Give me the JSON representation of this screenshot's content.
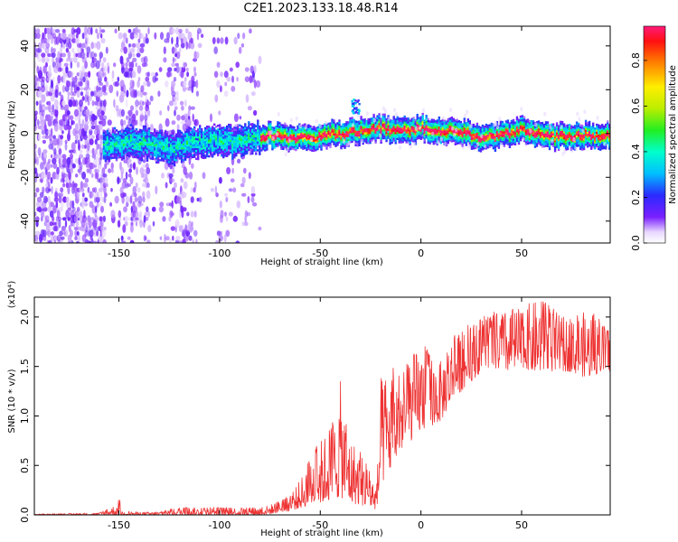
{
  "title": "C2E1.2023.133.18.48.R14",
  "chart_data": [
    {
      "type": "heatmap",
      "title": "",
      "xlabel": "Height of straight line (km)",
      "ylabel": "Frequency (Hz)",
      "xlim": [
        -192,
        94
      ],
      "ylim": [
        -50,
        49
      ],
      "xticks": [
        -150,
        -100,
        -50,
        0,
        50
      ],
      "yticks": [
        -40,
        -20,
        0,
        20,
        40
      ],
      "ridge": {
        "x": [
          -155,
          -145,
          -135,
          -125,
          -115,
          -105,
          -95,
          -85,
          -75,
          -65,
          -55,
          -45,
          -40,
          -35,
          -30,
          -25,
          -20,
          -15,
          -10,
          -5,
          0,
          5,
          10,
          15,
          20,
          25,
          30,
          35,
          40,
          45,
          50,
          55,
          60,
          65,
          70,
          75,
          80,
          85,
          90
        ],
        "y": [
          -5,
          -3,
          -4,
          -7,
          -4,
          -2,
          -3,
          -2,
          0,
          -1,
          -2,
          1,
          0,
          1,
          2,
          3,
          3,
          2,
          3,
          2,
          3,
          2,
          1,
          2,
          1,
          0,
          -2,
          -1,
          0,
          1,
          2,
          1,
          0,
          -1,
          0,
          -1,
          0,
          -1,
          0
        ]
      },
      "blob": {
        "x": -33,
        "y": 13
      },
      "colorbar": {
        "label": "Normalized spectral amplitude",
        "range": [
          0.0,
          0.95
        ],
        "ticks": [
          0.0,
          0.2,
          0.4,
          0.6,
          0.8
        ],
        "tick_labels": [
          "0.0",
          "0.2",
          "0.4",
          "0.6",
          "0.8"
        ]
      }
    },
    {
      "type": "line",
      "title": "",
      "xlabel": "Height of straight line (km)",
      "ylabel": "SNR (10 * v/v)",
      "multiplier": "(x10⁴)",
      "xlim": [
        -192,
        94
      ],
      "ylim": [
        0,
        2.2
      ],
      "xticks": [
        -150,
        -100,
        -50,
        0,
        50
      ],
      "yticks": [
        0.0,
        0.5,
        1.0,
        1.5,
        2.0
      ],
      "ytick_labels": [
        "0.0",
        "0.5",
        "1.0",
        "1.5",
        "2.0"
      ],
      "color": "#ee3333",
      "envelope": {
        "x": [
          -192,
          -160,
          -150,
          -149,
          -140,
          -130,
          -120,
          -110,
          -100,
          -90,
          -80,
          -75,
          -70,
          -65,
          -60,
          -55,
          -50,
          -45,
          -40,
          -35,
          -30,
          -25,
          -22,
          -20,
          -15,
          -10,
          -5,
          0,
          5,
          10,
          15,
          20,
          25,
          30,
          35,
          40,
          45,
          50,
          55,
          60,
          65,
          70,
          75,
          80,
          85,
          90,
          94
        ],
        "low": [
          0.0,
          0.0,
          0.0,
          0.0,
          0.0,
          0.0,
          0.0,
          0.0,
          0.0,
          0.0,
          0.0,
          0.01,
          0.03,
          0.04,
          0.07,
          0.1,
          0.12,
          0.15,
          0.18,
          0.12,
          0.1,
          0.08,
          0.05,
          0.3,
          0.45,
          0.65,
          0.75,
          0.85,
          0.9,
          0.95,
          1.15,
          1.25,
          1.35,
          1.45,
          1.5,
          1.45,
          1.45,
          1.5,
          1.45,
          1.45,
          1.45,
          1.45,
          1.45,
          1.4,
          1.4,
          1.45,
          1.45
        ],
        "high": [
          0.01,
          0.02,
          0.12,
          0.04,
          0.03,
          0.03,
          0.08,
          0.07,
          0.08,
          0.07,
          0.08,
          0.1,
          0.15,
          0.2,
          0.35,
          0.6,
          0.75,
          0.9,
          1.35,
          0.8,
          0.65,
          0.45,
          0.3,
          1.4,
          1.5,
          1.45,
          1.6,
          1.75,
          1.65,
          1.55,
          1.8,
          1.85,
          1.95,
          2.0,
          2.05,
          2.05,
          2.1,
          2.1,
          2.15,
          2.2,
          2.1,
          2.0,
          2.0,
          2.05,
          2.05,
          1.95,
          1.9
        ]
      }
    }
  ]
}
